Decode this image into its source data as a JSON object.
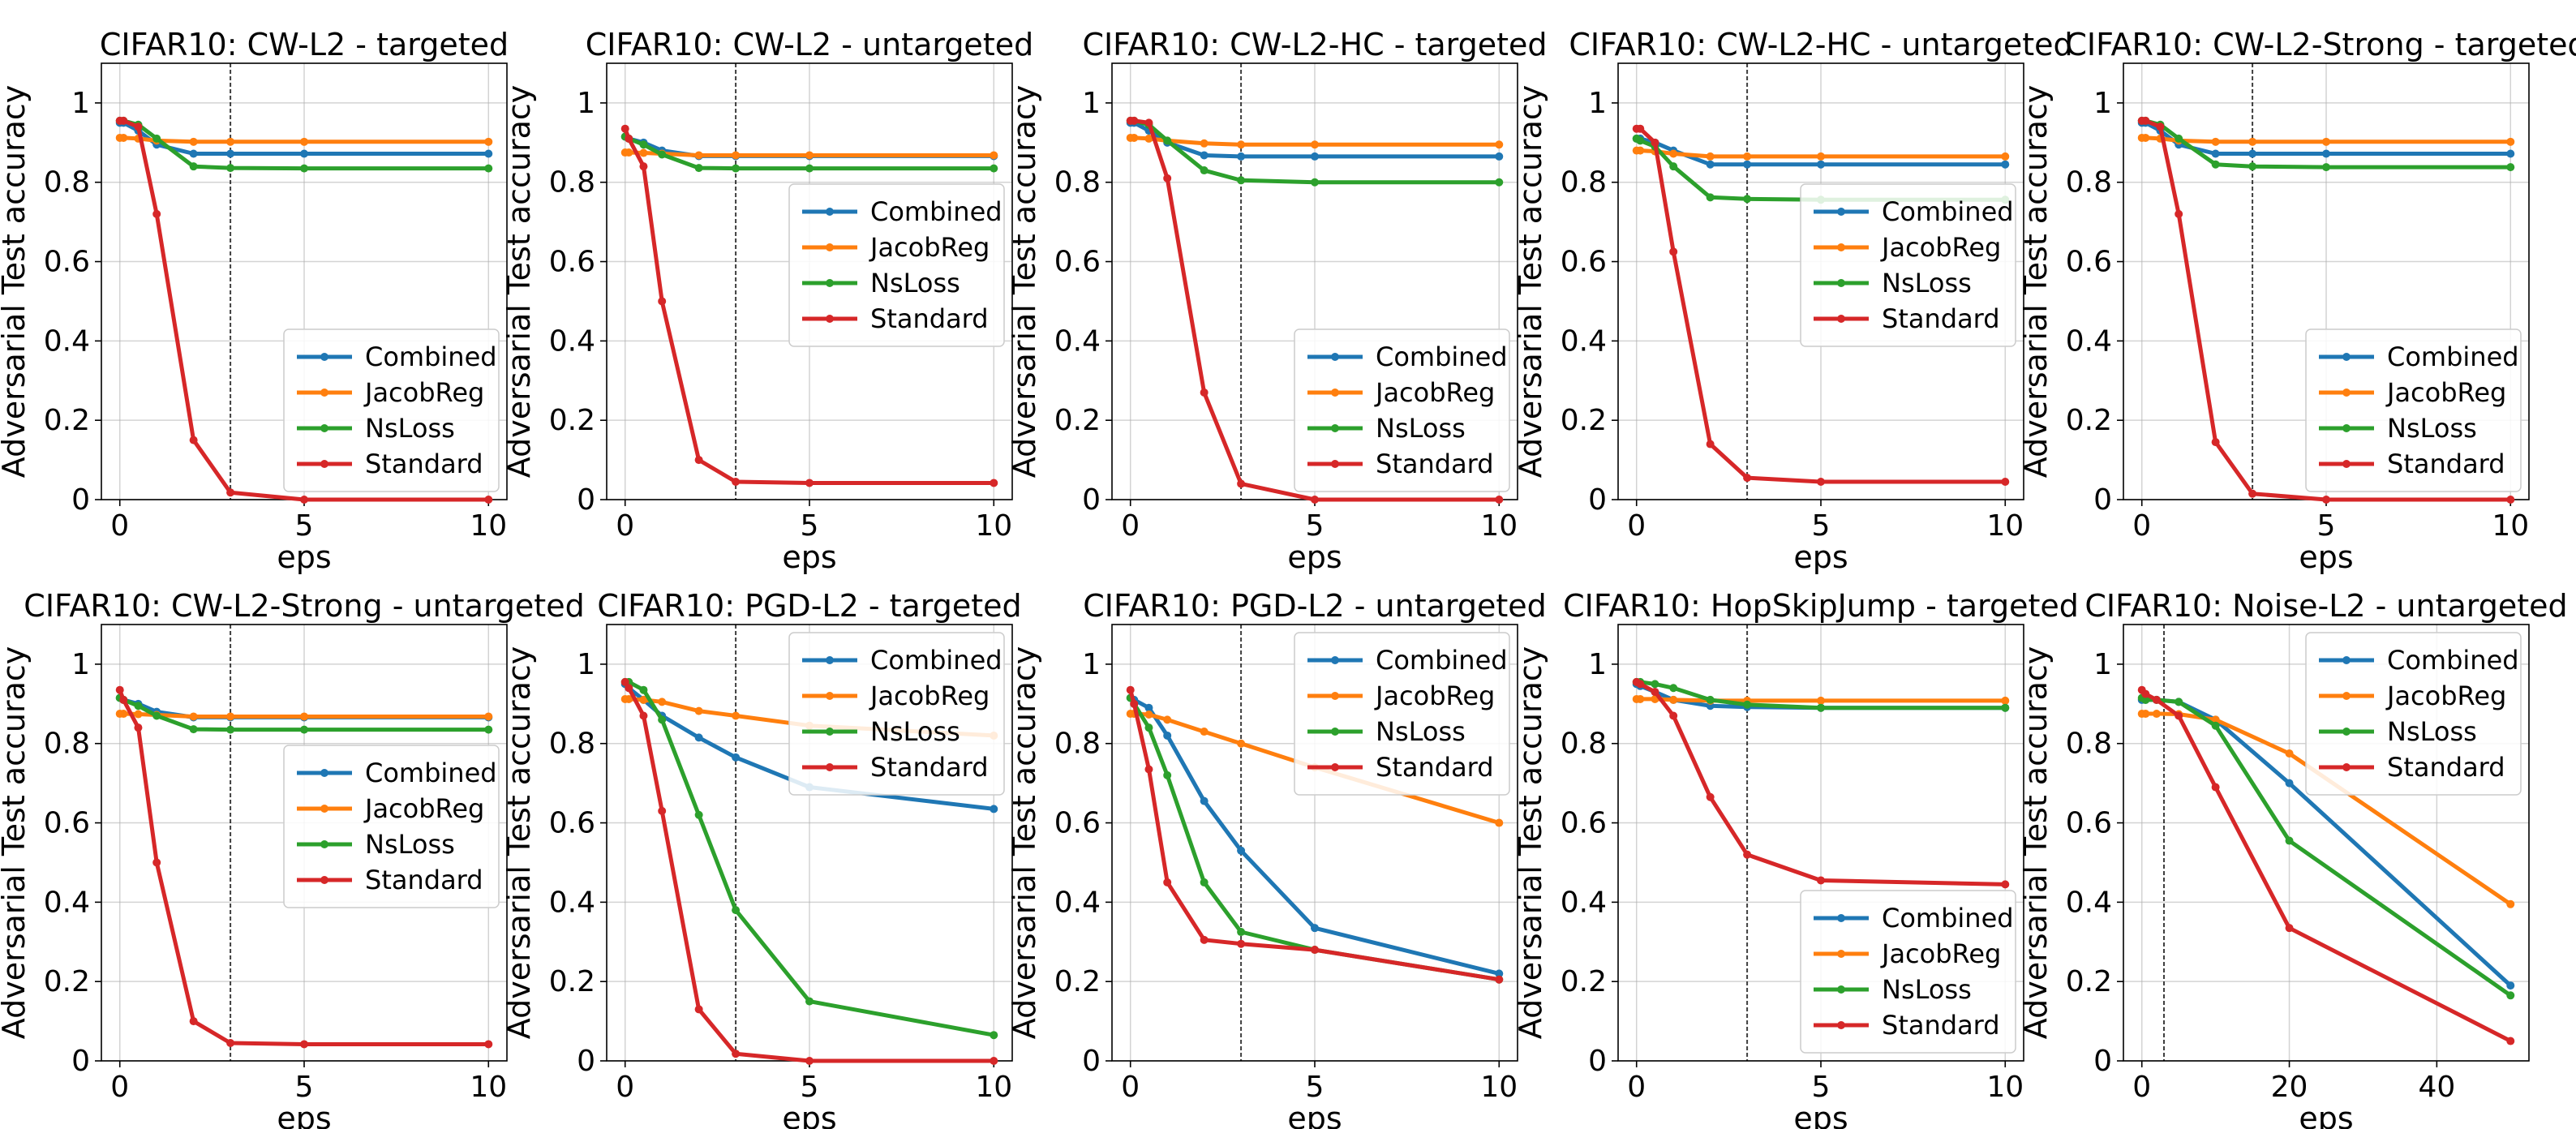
{
  "figure": {
    "ylabel": "Adversarial Test accuracy",
    "xlabel": "eps"
  },
  "chart_data": [
    {
      "type": "line",
      "title": "CIFAR10: CW-L2 - targeted",
      "xlabel": "eps",
      "ylabel": "Adversarial Test accuracy",
      "xlim": [
        -0.5,
        10.5
      ],
      "ylim": [
        0,
        1.1
      ],
      "xticks": [
        0,
        5,
        10
      ],
      "yticks": [
        0.0,
        0.2,
        0.4,
        0.6,
        0.8,
        1.0
      ],
      "vline": 3,
      "grid": true,
      "legend": "lower-right",
      "x": [
        0,
        0.1,
        0.5,
        1,
        2,
        3,
        5,
        10
      ],
      "series": [
        {
          "name": "Combined",
          "color": "#1f77b4",
          "values": [
            0.95,
            0.95,
            0.93,
            0.895,
            0.872,
            0.872,
            0.872,
            0.872
          ]
        },
        {
          "name": "JacobReg",
          "color": "#ff7f0e",
          "values": [
            0.912,
            0.912,
            0.91,
            0.905,
            0.902,
            0.902,
            0.902,
            0.902
          ]
        },
        {
          "name": "NsLoss",
          "color": "#2ca02c",
          "values": [
            0.955,
            0.955,
            0.945,
            0.91,
            0.84,
            0.836,
            0.835,
            0.835
          ]
        },
        {
          "name": "Standard",
          "color": "#d62728",
          "values": [
            0.955,
            0.955,
            0.94,
            0.72,
            0.15,
            0.018,
            0.0,
            0.0
          ]
        }
      ]
    },
    {
      "type": "line",
      "title": "CIFAR10: CW-L2 - untargeted",
      "xlabel": "eps",
      "ylabel": "Adversarial Test accuracy",
      "xlim": [
        -0.5,
        10.5
      ],
      "ylim": [
        0,
        1.1
      ],
      "xticks": [
        0,
        5,
        10
      ],
      "yticks": [
        0.0,
        0.2,
        0.4,
        0.6,
        0.8,
        1.0
      ],
      "vline": 3,
      "grid": true,
      "legend": "center-right",
      "x": [
        0,
        0.1,
        0.5,
        1,
        2,
        3,
        5,
        10
      ],
      "series": [
        {
          "name": "Combined",
          "color": "#1f77b4",
          "values": [
            0.915,
            0.91,
            0.9,
            0.88,
            0.866,
            0.866,
            0.866,
            0.866
          ]
        },
        {
          "name": "JacobReg",
          "color": "#ff7f0e",
          "values": [
            0.875,
            0.875,
            0.874,
            0.872,
            0.868,
            0.868,
            0.868,
            0.868
          ]
        },
        {
          "name": "NsLoss",
          "color": "#2ca02c",
          "values": [
            0.915,
            0.91,
            0.895,
            0.87,
            0.836,
            0.835,
            0.835,
            0.835
          ]
        },
        {
          "name": "Standard",
          "color": "#d62728",
          "values": [
            0.935,
            0.91,
            0.84,
            0.5,
            0.1,
            0.045,
            0.042,
            0.042
          ]
        }
      ]
    },
    {
      "type": "line",
      "title": "CIFAR10: CW-L2-HC - targeted",
      "xlabel": "eps",
      "ylabel": "Adversarial Test accuracy",
      "xlim": [
        -0.5,
        10.5
      ],
      "ylim": [
        0,
        1.1
      ],
      "xticks": [
        0,
        5,
        10
      ],
      "yticks": [
        0.0,
        0.2,
        0.4,
        0.6,
        0.8,
        1.0
      ],
      "vline": 3,
      "grid": true,
      "legend": "lower-right",
      "x": [
        0,
        0.1,
        0.5,
        1,
        2,
        3,
        5,
        10
      ],
      "series": [
        {
          "name": "Combined",
          "color": "#1f77b4",
          "values": [
            0.95,
            0.95,
            0.93,
            0.9,
            0.868,
            0.865,
            0.865,
            0.865
          ]
        },
        {
          "name": "JacobReg",
          "color": "#ff7f0e",
          "values": [
            0.912,
            0.912,
            0.91,
            0.905,
            0.898,
            0.895,
            0.895,
            0.895
          ]
        },
        {
          "name": "NsLoss",
          "color": "#2ca02c",
          "values": [
            0.955,
            0.955,
            0.945,
            0.905,
            0.83,
            0.805,
            0.8,
            0.8
          ]
        },
        {
          "name": "Standard",
          "color": "#d62728",
          "values": [
            0.955,
            0.955,
            0.95,
            0.81,
            0.27,
            0.04,
            0.0,
            0.0
          ]
        }
      ]
    },
    {
      "type": "line",
      "title": "CIFAR10: CW-L2-HC - untargeted",
      "xlabel": "eps",
      "ylabel": "Adversarial Test accuracy",
      "xlim": [
        -0.5,
        10.5
      ],
      "ylim": [
        0,
        1.1
      ],
      "xticks": [
        0,
        5,
        10
      ],
      "yticks": [
        0.0,
        0.2,
        0.4,
        0.6,
        0.8,
        1.0
      ],
      "vline": 3,
      "grid": true,
      "legend": "center-right",
      "x": [
        0,
        0.1,
        0.5,
        1,
        2,
        3,
        5,
        10
      ],
      "series": [
        {
          "name": "Combined",
          "color": "#1f77b4",
          "values": [
            0.91,
            0.91,
            0.9,
            0.88,
            0.845,
            0.845,
            0.845,
            0.845
          ]
        },
        {
          "name": "JacobReg",
          "color": "#ff7f0e",
          "values": [
            0.88,
            0.88,
            0.878,
            0.872,
            0.865,
            0.865,
            0.865,
            0.865
          ]
        },
        {
          "name": "NsLoss",
          "color": "#2ca02c",
          "values": [
            0.91,
            0.905,
            0.89,
            0.84,
            0.762,
            0.758,
            0.756,
            0.756
          ]
        },
        {
          "name": "Standard",
          "color": "#d62728",
          "values": [
            0.935,
            0.935,
            0.9,
            0.625,
            0.14,
            0.055,
            0.045,
            0.045
          ]
        }
      ]
    },
    {
      "type": "line",
      "title": "CIFAR10: CW-L2-Strong - targeted",
      "xlabel": "eps",
      "ylabel": "Adversarial Test accuracy",
      "xlim": [
        -0.5,
        10.5
      ],
      "ylim": [
        0,
        1.1
      ],
      "xticks": [
        0,
        5,
        10
      ],
      "yticks": [
        0.0,
        0.2,
        0.4,
        0.6,
        0.8,
        1.0
      ],
      "vline": 3,
      "grid": true,
      "legend": "lower-right",
      "x": [
        0,
        0.1,
        0.5,
        1,
        2,
        3,
        5,
        10
      ],
      "series": [
        {
          "name": "Combined",
          "color": "#1f77b4",
          "values": [
            0.95,
            0.95,
            0.93,
            0.895,
            0.872,
            0.872,
            0.872,
            0.872
          ]
        },
        {
          "name": "JacobReg",
          "color": "#ff7f0e",
          "values": [
            0.912,
            0.912,
            0.91,
            0.905,
            0.902,
            0.902,
            0.902,
            0.902
          ]
        },
        {
          "name": "NsLoss",
          "color": "#2ca02c",
          "values": [
            0.955,
            0.955,
            0.945,
            0.91,
            0.845,
            0.84,
            0.838,
            0.838
          ]
        },
        {
          "name": "Standard",
          "color": "#d62728",
          "values": [
            0.955,
            0.955,
            0.94,
            0.72,
            0.145,
            0.015,
            0.0,
            0.0
          ]
        }
      ]
    },
    {
      "type": "line",
      "title": "CIFAR10: CW-L2-Strong - untargeted",
      "xlabel": "eps",
      "ylabel": "Adversarial Test accuracy",
      "xlim": [
        -0.5,
        10.5
      ],
      "ylim": [
        0,
        1.1
      ],
      "xticks": [
        0,
        5,
        10
      ],
      "yticks": [
        0.0,
        0.2,
        0.4,
        0.6,
        0.8,
        1.0
      ],
      "vline": 3,
      "grid": true,
      "legend": "center-right",
      "x": [
        0,
        0.1,
        0.5,
        1,
        2,
        3,
        5,
        10
      ],
      "series": [
        {
          "name": "Combined",
          "color": "#1f77b4",
          "values": [
            0.915,
            0.91,
            0.9,
            0.88,
            0.866,
            0.866,
            0.866,
            0.866
          ]
        },
        {
          "name": "JacobReg",
          "color": "#ff7f0e",
          "values": [
            0.875,
            0.875,
            0.874,
            0.872,
            0.868,
            0.868,
            0.868,
            0.868
          ]
        },
        {
          "name": "NsLoss",
          "color": "#2ca02c",
          "values": [
            0.915,
            0.91,
            0.895,
            0.87,
            0.836,
            0.835,
            0.835,
            0.835
          ]
        },
        {
          "name": "Standard",
          "color": "#d62728",
          "values": [
            0.935,
            0.91,
            0.84,
            0.5,
            0.1,
            0.045,
            0.042,
            0.042
          ]
        }
      ]
    },
    {
      "type": "line",
      "title": "CIFAR10: PGD-L2 - targeted",
      "xlabel": "eps",
      "ylabel": "Adversarial Test accuracy",
      "xlim": [
        -0.5,
        10.5
      ],
      "ylim": [
        0,
        1.1
      ],
      "xticks": [
        0,
        5,
        10
      ],
      "yticks": [
        0.0,
        0.2,
        0.4,
        0.6,
        0.8,
        1.0
      ],
      "vline": 3,
      "grid": true,
      "legend": "upper-right",
      "x": [
        0,
        0.1,
        0.5,
        1,
        2,
        3,
        5,
        10
      ],
      "series": [
        {
          "name": "Combined",
          "color": "#1f77b4",
          "values": [
            0.95,
            0.94,
            0.91,
            0.87,
            0.815,
            0.765,
            0.69,
            0.635
          ]
        },
        {
          "name": "JacobReg",
          "color": "#ff7f0e",
          "values": [
            0.912,
            0.912,
            0.91,
            0.905,
            0.882,
            0.87,
            0.845,
            0.82
          ]
        },
        {
          "name": "NsLoss",
          "color": "#2ca02c",
          "values": [
            0.955,
            0.955,
            0.935,
            0.86,
            0.62,
            0.38,
            0.15,
            0.065
          ]
        },
        {
          "name": "Standard",
          "color": "#d62728",
          "values": [
            0.955,
            0.94,
            0.87,
            0.63,
            0.13,
            0.018,
            0.0,
            0.0
          ]
        }
      ]
    },
    {
      "type": "line",
      "title": "CIFAR10: PGD-L2 - untargeted",
      "xlabel": "eps",
      "ylabel": "Adversarial Test accuracy",
      "xlim": [
        -0.5,
        10.5
      ],
      "ylim": [
        0,
        1.1
      ],
      "xticks": [
        0,
        5,
        10
      ],
      "yticks": [
        0.0,
        0.2,
        0.4,
        0.6,
        0.8,
        1.0
      ],
      "vline": 3,
      "grid": true,
      "legend": "upper-right",
      "x": [
        0,
        0.1,
        0.5,
        1,
        2,
        3,
        5,
        10
      ],
      "series": [
        {
          "name": "Combined",
          "color": "#1f77b4",
          "values": [
            0.915,
            0.91,
            0.89,
            0.82,
            0.655,
            0.53,
            0.335,
            0.22
          ]
        },
        {
          "name": "JacobReg",
          "color": "#ff7f0e",
          "values": [
            0.875,
            0.875,
            0.873,
            0.86,
            0.83,
            0.8,
            0.74,
            0.6
          ]
        },
        {
          "name": "NsLoss",
          "color": "#2ca02c",
          "values": [
            0.915,
            0.9,
            0.84,
            0.72,
            0.45,
            0.325,
            0.28,
            0.205
          ]
        },
        {
          "name": "Standard",
          "color": "#d62728",
          "values": [
            0.935,
            0.9,
            0.735,
            0.45,
            0.305,
            0.295,
            0.28,
            0.205
          ]
        }
      ]
    },
    {
      "type": "line",
      "title": "CIFAR10: HopSkipJump - targeted",
      "xlabel": "eps",
      "ylabel": "Adversarial Test accuracy",
      "xlim": [
        -0.5,
        10.5
      ],
      "ylim": [
        0,
        1.1
      ],
      "xticks": [
        0,
        5,
        10
      ],
      "yticks": [
        0.0,
        0.2,
        0.4,
        0.6,
        0.8,
        1.0
      ],
      "vline": 3,
      "grid": true,
      "legend": "lower-right",
      "x": [
        0,
        0.1,
        0.5,
        1,
        2,
        3,
        5,
        10
      ],
      "series": [
        {
          "name": "Combined",
          "color": "#1f77b4",
          "values": [
            0.95,
            0.945,
            0.93,
            0.91,
            0.895,
            0.892,
            0.89,
            0.89
          ]
        },
        {
          "name": "JacobReg",
          "color": "#ff7f0e",
          "values": [
            0.912,
            0.912,
            0.912,
            0.91,
            0.908,
            0.908,
            0.908,
            0.908
          ]
        },
        {
          "name": "NsLoss",
          "color": "#2ca02c",
          "values": [
            0.955,
            0.955,
            0.95,
            0.94,
            0.91,
            0.898,
            0.89,
            0.89
          ]
        },
        {
          "name": "Standard",
          "color": "#d62728",
          "values": [
            0.955,
            0.95,
            0.93,
            0.87,
            0.665,
            0.52,
            0.455,
            0.445
          ]
        }
      ]
    },
    {
      "type": "line",
      "title": "CIFAR10: Noise-L2 - untargeted",
      "xlabel": "eps",
      "ylabel": "Adversarial Test accuracy",
      "xlim": [
        -2.5,
        52.5
      ],
      "ylim": [
        0,
        1.1
      ],
      "xticks": [
        0,
        20,
        40
      ],
      "yticks": [
        0.0,
        0.2,
        0.4,
        0.6,
        0.8,
        1.0
      ],
      "vline": 3,
      "grid": true,
      "legend": "upper-right",
      "x": [
        0,
        0.5,
        2,
        5,
        10,
        20,
        50
      ],
      "series": [
        {
          "name": "Combined",
          "color": "#1f77b4",
          "values": [
            0.91,
            0.91,
            0.91,
            0.905,
            0.86,
            0.7,
            0.19
          ]
        },
        {
          "name": "JacobReg",
          "color": "#ff7f0e",
          "values": [
            0.875,
            0.875,
            0.875,
            0.874,
            0.86,
            0.775,
            0.395
          ]
        },
        {
          "name": "NsLoss",
          "color": "#2ca02c",
          "values": [
            0.915,
            0.91,
            0.91,
            0.905,
            0.845,
            0.555,
            0.165
          ]
        },
        {
          "name": "Standard",
          "color": "#d62728",
          "values": [
            0.935,
            0.925,
            0.91,
            0.87,
            0.69,
            0.335,
            0.05
          ]
        }
      ]
    }
  ]
}
